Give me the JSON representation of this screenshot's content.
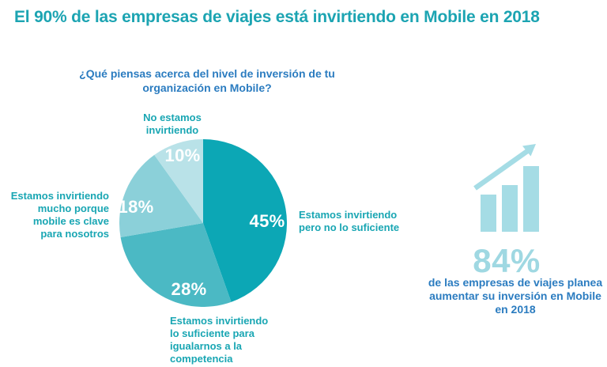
{
  "page_title": "El 90% de las empresas de viajes está invirtiendo en Mobile en 2018",
  "colors": {
    "title_teal": "#1ca4b2",
    "category_label_teal": "#19a6b3",
    "question_blue": "#2b7cc0",
    "icon_light_teal": "#a5dce5",
    "stat_value_teal": "#9fd8e2",
    "data_label_white": "#ffffff"
  },
  "chart_data": {
    "type": "pie",
    "title": "¿Qué piensas acerca del nivel de inversión de tu organización en Mobile?",
    "categories": [
      "Estamos invirtiendo pero no lo suficiente",
      "Estamos invirtiendo lo suficiente para igualarnos a la competencia",
      "Estamos invirtiendo mucho porque mobile es clave para nosotros",
      "No estamos invirtiendo"
    ],
    "values": [
      45,
      28,
      18,
      10
    ],
    "display_values": [
      "45%",
      "28%",
      "18%",
      "10%"
    ],
    "colors": [
      "#0ca7b5",
      "#4bb9c4",
      "#8bd0d9",
      "#b9e2e8"
    ],
    "start_angle_deg": -90,
    "direction": "clockwise",
    "data_label_color": "#ffffff",
    "legend_position": "labels-around-pie"
  },
  "stat_panel": {
    "icon": "growth-bars-arrow-icon",
    "value": "84%",
    "description": "de las empresas de viajes planea aumentar su inversión en Mobile en 2018"
  }
}
